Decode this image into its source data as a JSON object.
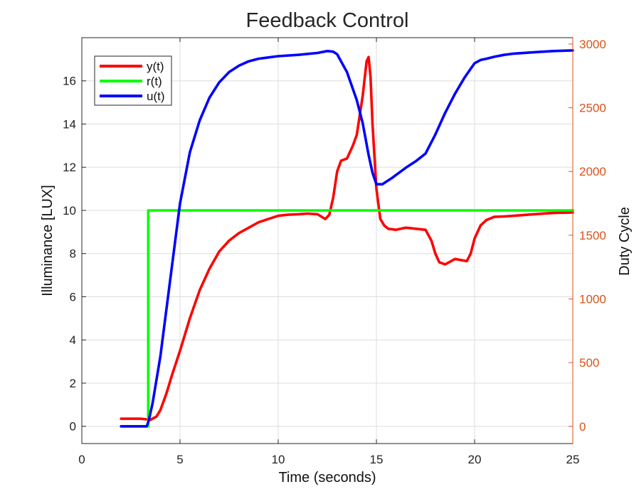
{
  "chart_data": {
    "type": "line",
    "title": "Feedback Control",
    "xlabel": "Time (seconds)",
    "ylabel_left": "Illuminance [LUX]",
    "ylabel_right": "Duty Cycle",
    "xlim": [
      0,
      25
    ],
    "ylim_left": [
      -0.8,
      18
    ],
    "ylim_right": [
      -135,
      3050
    ],
    "xticks": [
      0,
      5,
      10,
      15,
      20,
      25
    ],
    "yticks_left": [
      0,
      2,
      4,
      6,
      8,
      10,
      12,
      14,
      16
    ],
    "yticks_right": [
      0,
      500,
      1000,
      1500,
      2000,
      2500,
      3000
    ],
    "grid": true,
    "legend_position": "top-left",
    "colors": {
      "y": "#ff0000",
      "r": "#00ff00",
      "u": "#0000ff",
      "right_axis": "#D95319",
      "grid": "#dddddd"
    },
    "series": [
      {
        "name": "y(t)",
        "axis": "left",
        "x": [
          2.0,
          2.5,
          3.0,
          3.3,
          3.5,
          3.8,
          4.0,
          4.3,
          4.6,
          5.0,
          5.5,
          6.0,
          6.5,
          7.0,
          7.5,
          8.0,
          8.5,
          9.0,
          9.5,
          10.0,
          10.5,
          11.0,
          11.5,
          12.0,
          12.4,
          12.6,
          12.8,
          13.0,
          13.2,
          13.5,
          13.8,
          14.0,
          14.3,
          14.5,
          14.6,
          14.7,
          14.8,
          15.0,
          15.2,
          15.4,
          15.6,
          16.0,
          16.5,
          17.0,
          17.5,
          17.8,
          18.0,
          18.2,
          18.5,
          18.8,
          19.0,
          19.3,
          19.6,
          19.8,
          20.0,
          20.3,
          20.6,
          21.0,
          21.5,
          22.0,
          23.0,
          24.0,
          25.0
        ],
        "values": [
          0.35,
          0.35,
          0.35,
          0.32,
          0.3,
          0.45,
          0.75,
          1.5,
          2.4,
          3.5,
          5.0,
          6.3,
          7.3,
          8.1,
          8.6,
          8.95,
          9.2,
          9.45,
          9.6,
          9.75,
          9.8,
          9.82,
          9.85,
          9.82,
          9.6,
          9.8,
          10.6,
          11.8,
          12.3,
          12.4,
          13.0,
          13.5,
          15.3,
          16.9,
          17.1,
          16.2,
          14.0,
          11.0,
          9.6,
          9.3,
          9.15,
          9.1,
          9.2,
          9.15,
          9.1,
          8.6,
          8.0,
          7.6,
          7.5,
          7.65,
          7.75,
          7.7,
          7.65,
          8.0,
          8.7,
          9.3,
          9.55,
          9.7,
          9.72,
          9.75,
          9.82,
          9.88,
          9.9
        ]
      },
      {
        "name": "r(t)",
        "axis": "left",
        "x": [
          2.0,
          3.38,
          3.38,
          25.0
        ],
        "values": [
          0,
          0,
          10,
          10
        ]
      },
      {
        "name": "u(t)",
        "axis": "right",
        "x": [
          2.0,
          3.3,
          3.4,
          3.6,
          4.0,
          4.5,
          5.0,
          5.5,
          6.0,
          6.5,
          7.0,
          7.5,
          8.0,
          8.5,
          9.0,
          9.5,
          10.0,
          11.0,
          12.0,
          12.5,
          12.8,
          13.0,
          13.5,
          14.0,
          14.3,
          14.6,
          14.8,
          15.0,
          15.3,
          15.8,
          16.5,
          17.0,
          17.5,
          18.0,
          18.5,
          19.0,
          19.5,
          20.0,
          20.3,
          20.6,
          21.0,
          21.5,
          22.0,
          23.0,
          24.0,
          25.0
        ],
        "values": [
          0,
          0,
          40,
          180,
          550,
          1150,
          1750,
          2150,
          2400,
          2580,
          2700,
          2780,
          2830,
          2865,
          2885,
          2895,
          2905,
          2915,
          2930,
          2945,
          2940,
          2920,
          2780,
          2560,
          2380,
          2130,
          1990,
          1900,
          1900,
          1950,
          2030,
          2080,
          2140,
          2290,
          2460,
          2610,
          2740,
          2850,
          2875,
          2885,
          2900,
          2915,
          2925,
          2935,
          2945,
          2950
        ]
      }
    ]
  }
}
